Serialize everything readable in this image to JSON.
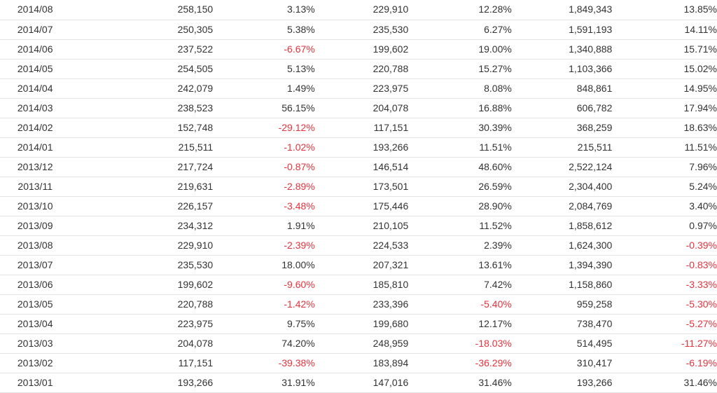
{
  "table": {
    "rows": [
      [
        "2014/08",
        "258,150",
        "3.13%",
        "229,910",
        "12.28%",
        "1,849,343",
        "13.85%"
      ],
      [
        "2014/07",
        "250,305",
        "5.38%",
        "235,530",
        "6.27%",
        "1,591,193",
        "14.11%"
      ],
      [
        "2014/06",
        "237,522",
        "-6.67%",
        "199,602",
        "19.00%",
        "1,340,888",
        "15.71%"
      ],
      [
        "2014/05",
        "254,505",
        "5.13%",
        "220,788",
        "15.27%",
        "1,103,366",
        "15.02%"
      ],
      [
        "2014/04",
        "242,079",
        "1.49%",
        "223,975",
        "8.08%",
        "848,861",
        "14.95%"
      ],
      [
        "2014/03",
        "238,523",
        "56.15%",
        "204,078",
        "16.88%",
        "606,782",
        "17.94%"
      ],
      [
        "2014/02",
        "152,748",
        "-29.12%",
        "117,151",
        "30.39%",
        "368,259",
        "18.63%"
      ],
      [
        "2014/01",
        "215,511",
        "-1.02%",
        "193,266",
        "11.51%",
        "215,511",
        "11.51%"
      ],
      [
        "2013/12",
        "217,724",
        "-0.87%",
        "146,514",
        "48.60%",
        "2,522,124",
        "7.96%"
      ],
      [
        "2013/11",
        "219,631",
        "-2.89%",
        "173,501",
        "26.59%",
        "2,304,400",
        "5.24%"
      ],
      [
        "2013/10",
        "226,157",
        "-3.48%",
        "175,446",
        "28.90%",
        "2,084,769",
        "3.40%"
      ],
      [
        "2013/09",
        "234,312",
        "1.91%",
        "210,105",
        "11.52%",
        "1,858,612",
        "0.97%"
      ],
      [
        "2013/08",
        "229,910",
        "-2.39%",
        "224,533",
        "2.39%",
        "1,624,300",
        "-0.39%"
      ],
      [
        "2013/07",
        "235,530",
        "18.00%",
        "207,321",
        "13.61%",
        "1,394,390",
        "-0.83%"
      ],
      [
        "2013/06",
        "199,602",
        "-9.60%",
        "185,810",
        "7.42%",
        "1,158,860",
        "-3.33%"
      ],
      [
        "2013/05",
        "220,788",
        "-1.42%",
        "233,396",
        "-5.40%",
        "959,258",
        "-5.30%"
      ],
      [
        "2013/04",
        "223,975",
        "9.75%",
        "199,680",
        "12.17%",
        "738,470",
        "-5.27%"
      ],
      [
        "2013/03",
        "204,078",
        "74.20%",
        "248,959",
        "-18.03%",
        "514,495",
        "-11.27%"
      ],
      [
        "2013/02",
        "117,151",
        "-39.38%",
        "183,894",
        "-36.29%",
        "310,417",
        "-6.19%"
      ],
      [
        "2013/01",
        "193,266",
        "31.91%",
        "147,016",
        "31.46%",
        "193,266",
        "31.46%"
      ]
    ]
  },
  "colors": {
    "text": "#333333",
    "negative": "#e8323c",
    "row_border": "#e2e2e2"
  }
}
